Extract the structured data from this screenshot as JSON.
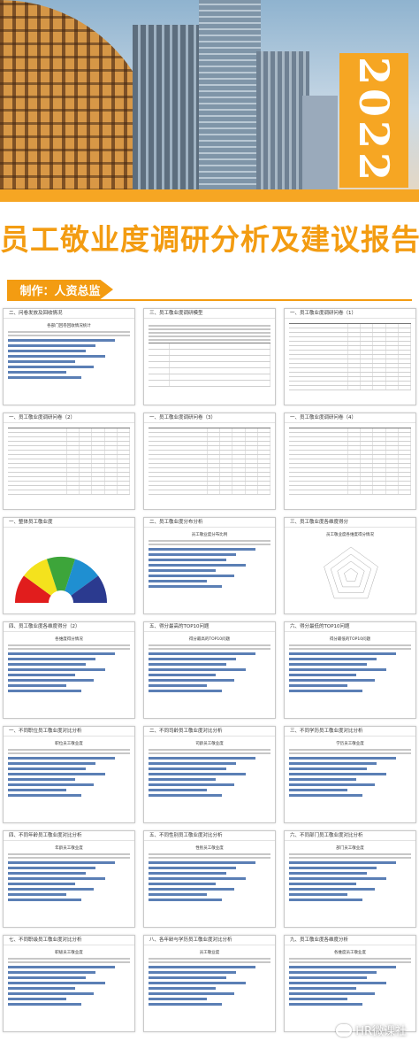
{
  "cover": {
    "year": "2022",
    "title": "员工敬业度调研分析及建议报告",
    "author": "制作：人资总监",
    "brand_color": "#f39c12"
  },
  "slides": [
    {
      "heading": "二、问卷发放及回收情况",
      "kind": "hbars",
      "chart_title": "各部门回卷回收情况统计"
    },
    {
      "heading": "三、员工敬业度调研模型",
      "kind": "textmodel"
    },
    {
      "heading": "一、员工敬业度调研问卷（1）",
      "kind": "table"
    },
    {
      "heading": "一、员工敬业度调研问卷（2）",
      "kind": "table"
    },
    {
      "heading": "一、员工敬业度调研问卷（3）",
      "kind": "table"
    },
    {
      "heading": "一、员工敬业度调研问卷（4）",
      "kind": "table"
    },
    {
      "heading": "一、整体员工敬业度",
      "kind": "gauge"
    },
    {
      "heading": "二、员工敬业度分布分析",
      "kind": "hbars",
      "chart_title": "员工敬业度分布比例"
    },
    {
      "heading": "三、员工敬业度各维度得分",
      "kind": "radar",
      "chart_title": "员工敬业度各维度得分情况"
    },
    {
      "heading": "四、员工敬业度各维度得分（2）",
      "kind": "hbars",
      "chart_title": "各维度得分情况"
    },
    {
      "heading": "五、得分最高的TOP10问题",
      "kind": "hbars",
      "chart_title": "得分最高的TOP10问题"
    },
    {
      "heading": "六、得分最低的TOP10问题",
      "kind": "hbars",
      "chart_title": "得分最低的TOP10问题"
    },
    {
      "heading": "一、不同职位员工敬业度对比分析",
      "kind": "hbars",
      "chart_title": "职位员工敬业度"
    },
    {
      "heading": "二、不同司龄员工敬业度对比分析",
      "kind": "hbars",
      "chart_title": "司龄员工敬业度"
    },
    {
      "heading": "三、不同学历员工敬业度对比分析",
      "kind": "hbars",
      "chart_title": "学历员工敬业度"
    },
    {
      "heading": "四、不同年龄员工敬业度对比分析",
      "kind": "hbars",
      "chart_title": "年龄员工敬业度"
    },
    {
      "heading": "五、不同性别员工敬业度对比分析",
      "kind": "hbars",
      "chart_title": "性别员工敬业度"
    },
    {
      "heading": "六、不同部门员工敬业度对比分析",
      "kind": "hbars",
      "chart_title": "部门员工敬业度"
    },
    {
      "heading": "七、不同职级员工敬业度对比分析",
      "kind": "hbars",
      "chart_title": "职级员工敬业度"
    },
    {
      "heading": "八、各年龄与学历员工敬业度对比分析",
      "kind": "hbars",
      "chart_title": "员工敬业度"
    },
    {
      "heading": "九、员工敬业度各维度分析",
      "kind": "hbars",
      "chart_title": "各维度员工敬业度"
    }
  ],
  "watermark": {
    "text": "HR微课社"
  }
}
